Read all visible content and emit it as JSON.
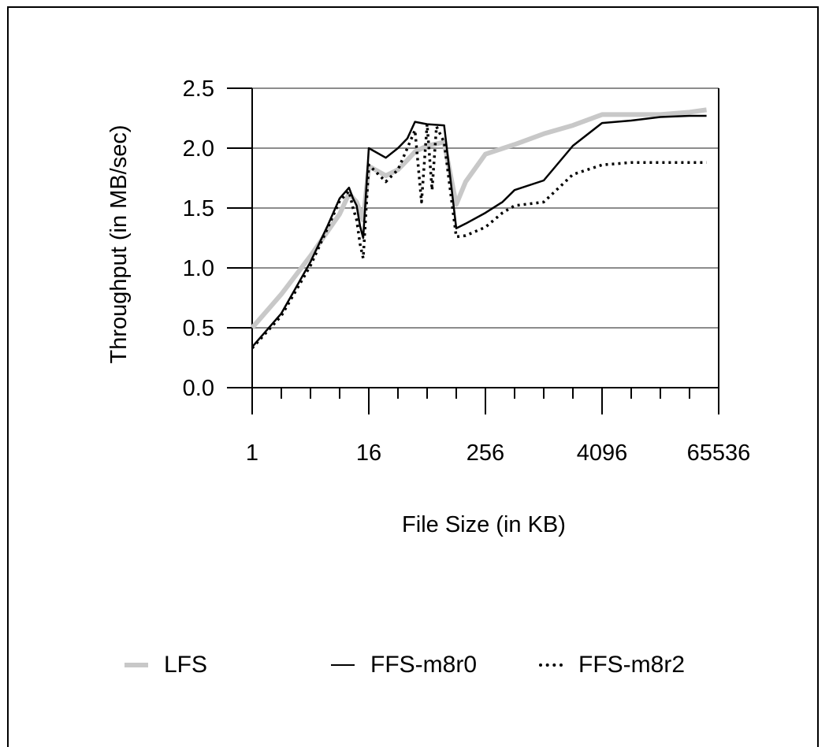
{
  "chart_data": {
    "type": "line",
    "title": "",
    "xlabel": "File Size (in KB)",
    "ylabel": "Throughput (in MB/sec)",
    "x_scale": "log2",
    "xlim": [
      1,
      65536
    ],
    "ylim": [
      0,
      2.5
    ],
    "y_ticks": [
      "0.0",
      "0.5",
      "1.0",
      "1.5",
      "2.0",
      "2.5"
    ],
    "x_tick_labels": [
      "1",
      "16",
      "256",
      "4096",
      "65536"
    ],
    "grid": "horizontal",
    "legend_position": "bottom",
    "series": [
      {
        "name": "LFS",
        "color": "#c8c8c8",
        "style": "thick",
        "x": [
          1,
          2,
          4,
          8,
          10,
          12,
          14,
          16,
          24,
          32,
          40,
          48,
          64,
          96,
          128,
          160,
          256,
          512,
          1024,
          2048,
          4096,
          8192,
          16384,
          32768,
          49152
        ],
        "y": [
          0.5,
          0.78,
          1.1,
          1.45,
          1.62,
          1.55,
          1.4,
          1.85,
          1.77,
          1.82,
          1.9,
          1.97,
          2.02,
          2.05,
          1.53,
          1.72,
          1.95,
          2.03,
          2.12,
          2.19,
          2.28,
          2.28,
          2.28,
          2.3,
          2.32
        ]
      },
      {
        "name": "FFS-m8r0",
        "color": "#000000",
        "style": "solid",
        "x": [
          1,
          2,
          4,
          6,
          8,
          10,
          11,
          12,
          13,
          14,
          16,
          24,
          32,
          40,
          48,
          64,
          96,
          128,
          160,
          256,
          384,
          512,
          1024,
          2048,
          4096,
          8192,
          16384,
          32768,
          49152
        ],
        "y": [
          0.34,
          0.62,
          1.05,
          1.35,
          1.58,
          1.67,
          1.58,
          1.52,
          1.35,
          1.25,
          2.0,
          1.92,
          2.0,
          2.08,
          2.22,
          2.2,
          2.19,
          1.33,
          1.37,
          1.46,
          1.55,
          1.65,
          1.73,
          2.02,
          2.21,
          2.23,
          2.26,
          2.27,
          2.27
        ]
      },
      {
        "name": "FFS-m8r2",
        "color": "#000000",
        "style": "dotted",
        "x": [
          1,
          2,
          4,
          6,
          8,
          10,
          11,
          12,
          13,
          14,
          16,
          24,
          32,
          40,
          48,
          56,
          64,
          72,
          80,
          96,
          128,
          160,
          256,
          384,
          512,
          1024,
          2048,
          4096,
          8192,
          16384,
          32768,
          49152
        ],
        "y": [
          0.33,
          0.6,
          1.02,
          1.33,
          1.56,
          1.64,
          1.5,
          1.4,
          1.2,
          1.08,
          1.86,
          1.72,
          1.82,
          2.0,
          2.15,
          1.55,
          2.2,
          1.65,
          2.18,
          2.05,
          1.26,
          1.27,
          1.34,
          1.46,
          1.52,
          1.55,
          1.78,
          1.86,
          1.88,
          1.88,
          1.88,
          1.88
        ]
      }
    ]
  }
}
